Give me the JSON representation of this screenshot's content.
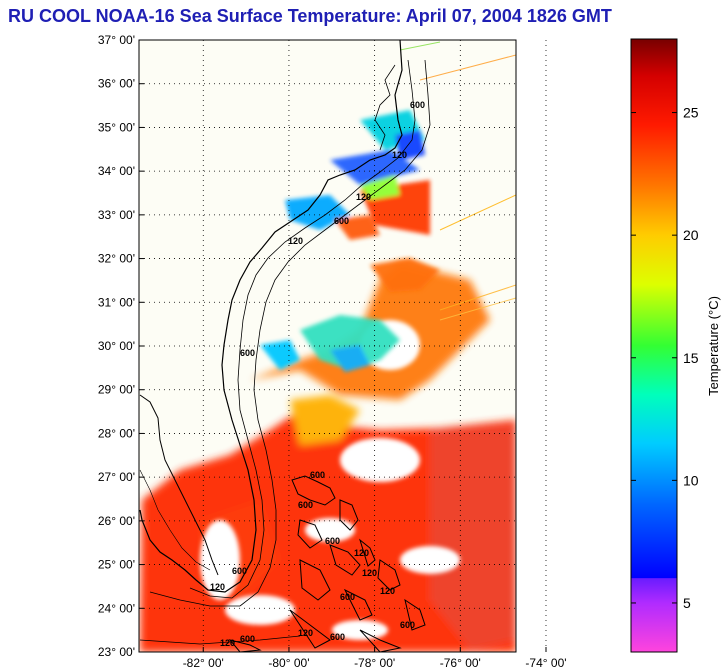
{
  "title": "RU COOL  NOAA-16  Sea Surface Temperature:  April 07, 2004 1826 GMT",
  "map": {
    "lat_labels": [
      "37° 00'",
      "36° 00'",
      "35° 00'",
      "34° 00'",
      "33° 00'",
      "32° 00'",
      "31° 00'",
      "30° 00'",
      "29° 00'",
      "28° 00'",
      "27° 00'",
      "26° 00'",
      "25° 00'",
      "24° 00'",
      "23° 00'"
    ],
    "lon_labels": [
      "-82° 00'",
      "-80° 00'",
      "-78° 00'",
      "-76° 00'",
      "-74° 00'"
    ],
    "lat_range": [
      23,
      37
    ],
    "lon_range": [
      -83.5,
      -74.7
    ],
    "contour_labels": [
      "600",
      "120",
      "120",
      "600",
      "120",
      "600",
      "600",
      "600",
      "600",
      "120",
      "600",
      "120",
      "120",
      "600",
      "600",
      "120",
      "600",
      "120",
      "600",
      "120"
    ]
  },
  "colorbar": {
    "title": "Temperature (°C)",
    "ticks": [
      "25",
      "20",
      "15",
      "10",
      "5"
    ],
    "range": [
      3,
      28
    ]
  },
  "colors": {
    "title": "#1f1fb4",
    "land": "#fdfdf5",
    "warm": "#ff2a00",
    "cool": "#00c8ff"
  }
}
